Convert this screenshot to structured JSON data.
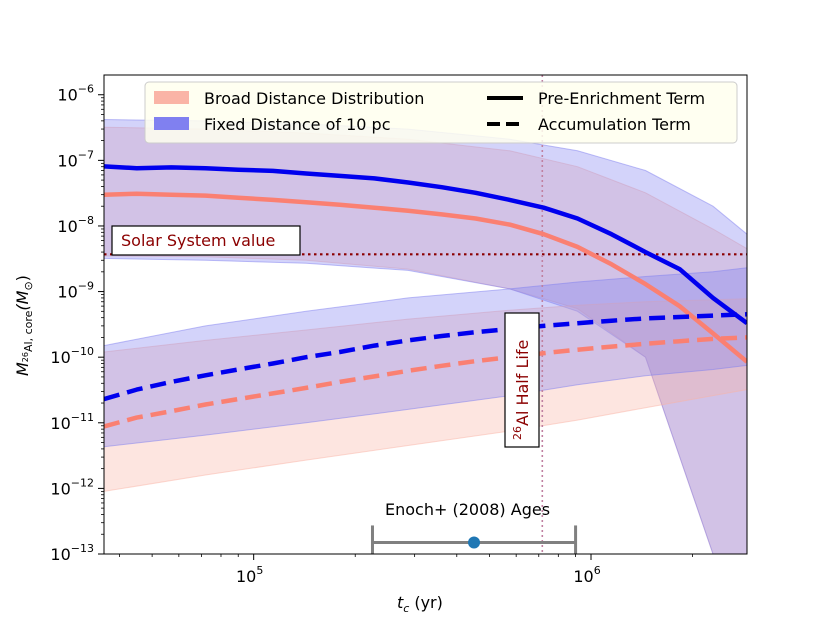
{
  "chart_data": {
    "type": "line",
    "xscale": "log",
    "yscale": "log",
    "xlim": [
      36000,
      2900000
    ],
    "ylim": [
      1e-13,
      2e-06
    ],
    "xlabel": "t_c (yr)",
    "ylabel": "M_26Al,core (M_sun)",
    "x_ticks": [
      {
        "value": 100000,
        "base": "10",
        "exp": "5"
      },
      {
        "value": 1000000,
        "base": "10",
        "exp": "6"
      }
    ],
    "y_ticks": [
      {
        "value": 1e-13,
        "base": "10",
        "exp": "−13"
      },
      {
        "value": 1e-12,
        "base": "10",
        "exp": "−12"
      },
      {
        "value": 1e-11,
        "base": "10",
        "exp": "−11"
      },
      {
        "value": 1e-10,
        "base": "10",
        "exp": "−10"
      },
      {
        "value": 1e-09,
        "base": "10",
        "exp": "−9"
      },
      {
        "value": 1e-08,
        "base": "10",
        "exp": "−8"
      },
      {
        "value": 1e-07,
        "base": "10",
        "exp": "−7"
      },
      {
        "value": 1e-06,
        "base": "10",
        "exp": "−6"
      }
    ],
    "colors": {
      "broad": "#fa8072",
      "broad_band": "#fab4a6",
      "fixed": "#0000ee",
      "fixed_band": "#8080f0",
      "solar": "#8b0000",
      "halflife": "#c080a0",
      "enoch": "#808080",
      "enoch_point": "#1f77b4"
    },
    "series": [
      {
        "name": "Fixed Distance of 10 pc - Pre-Enrichment Term",
        "color": "#0000ee",
        "style": "solid",
        "x": [
          36000,
          45000,
          57000,
          72000,
          90000,
          114000,
          143000,
          180000,
          228000,
          287000,
          361000,
          455000,
          574000,
          724000,
          912000,
          1150000,
          1450000,
          1830000,
          2300000,
          2900000
        ],
        "y": [
          8.1e-08,
          7.6e-08,
          7.8e-08,
          7.6e-08,
          7.2e-08,
          6.9e-08,
          6.3e-08,
          5.8e-08,
          5.3e-08,
          4.6e-08,
          3.9e-08,
          3.2e-08,
          2.5e-08,
          1.9e-08,
          1.3e-08,
          7.5e-09,
          4e-09,
          2.2e-09,
          8e-10,
          3.3e-10
        ]
      },
      {
        "name": "Broad Distance Distribution - Pre-Enrichment Term",
        "color": "#fa8072",
        "style": "solid",
        "x": [
          36000,
          45000,
          57000,
          72000,
          90000,
          114000,
          143000,
          180000,
          228000,
          287000,
          361000,
          455000,
          574000,
          724000,
          912000,
          1150000,
          1450000,
          1830000,
          2300000,
          2900000
        ],
        "y": [
          3e-08,
          3.1e-08,
          3e-08,
          2.9e-08,
          2.7e-08,
          2.5e-08,
          2.3e-08,
          2.1e-08,
          1.9e-08,
          1.7e-08,
          1.5e-08,
          1.3e-08,
          1.05e-08,
          7.5e-09,
          4.8e-09,
          2.6e-09,
          1.3e-09,
          6e-10,
          2.3e-10,
          8.5e-11
        ]
      },
      {
        "name": "Fixed Distance of 10 pc - Accumulation Term",
        "color": "#0000ee",
        "style": "dashed",
        "x": [
          36000,
          45000,
          57000,
          72000,
          90000,
          114000,
          143000,
          180000,
          228000,
          287000,
          361000,
          455000,
          574000,
          724000,
          912000,
          1150000,
          1450000,
          1830000,
          2300000,
          2900000
        ],
        "y": [
          2.3e-11,
          3.2e-11,
          4.2e-11,
          5.3e-11,
          6.5e-11,
          8e-11,
          1e-10,
          1.2e-10,
          1.5e-10,
          1.8e-10,
          2.1e-10,
          2.4e-10,
          2.7e-10,
          3e-10,
          3.3e-10,
          3.6e-10,
          3.9e-10,
          4.1e-10,
          4.3e-10,
          4.5e-10
        ]
      },
      {
        "name": "Broad Distance Distribution - Accumulation Term",
        "color": "#fa8072",
        "style": "dashed",
        "x": [
          36000,
          45000,
          57000,
          72000,
          90000,
          114000,
          143000,
          180000,
          228000,
          287000,
          361000,
          455000,
          574000,
          724000,
          912000,
          1150000,
          1450000,
          1830000,
          2300000,
          2900000
        ],
        "y": [
          8.8e-12,
          1.2e-11,
          1.5e-11,
          1.9e-11,
          2.3e-11,
          2.8e-11,
          3.4e-11,
          4.2e-11,
          5.1e-11,
          6.2e-11,
          7.4e-11,
          8.7e-11,
          1e-10,
          1.15e-10,
          1.3e-10,
          1.45e-10,
          1.6e-10,
          1.75e-10,
          1.9e-10,
          2e-10
        ]
      }
    ],
    "bands": [
      {
        "name": "Broad Distance Distribution - Pre-Enrichment band",
        "color": "#fab4a6",
        "x": [
          36000,
          72000,
          143000,
          287000,
          574000,
          912000,
          1450000,
          2300000,
          2900000
        ],
        "upper": [
          3.2e-07,
          3e-07,
          2.6e-07,
          2.1e-07,
          1.4e-07,
          8e-08,
          3.2e-08,
          9e-09,
          4.5e-09
        ],
        "lower": [
          3.5e-09,
          3.4e-09,
          3e-09,
          2.2e-09,
          1.1e-09,
          5.5e-10,
          1e-10,
          1e-13,
          1e-13
        ]
      },
      {
        "name": "Fixed Distance of 10 pc - Pre-Enrichment band",
        "color": "#8080f0",
        "x": [
          36000,
          72000,
          143000,
          287000,
          574000,
          912000,
          1450000,
          2300000,
          2900000
        ],
        "upper": [
          4.2e-07,
          4e-07,
          3.6e-07,
          3e-07,
          2.1e-07,
          1.4e-07,
          7e-08,
          2e-08,
          7.5e-09
        ],
        "lower": [
          3.2e-09,
          3e-09,
          2.7e-09,
          2.1e-09,
          1.1e-09,
          5e-10,
          1e-10,
          1e-13,
          1e-13
        ]
      },
      {
        "name": "Broad Distance Distribution - Accumulation band",
        "color": "#fab4a6",
        "x": [
          36000,
          72000,
          143000,
          287000,
          574000,
          912000,
          1450000,
          2300000,
          2900000
        ],
        "upper": [
          1.2e-10,
          1.8e-10,
          2.6e-10,
          3.8e-10,
          5.2e-10,
          6.2e-10,
          7e-10,
          7.5e-10,
          7.8e-10
        ],
        "lower": [
          9e-13,
          1.6e-12,
          2.7e-12,
          4.5e-12,
          7.5e-12,
          1.1e-11,
          1.7e-11,
          2.6e-11,
          3.2e-11
        ]
      },
      {
        "name": "Fixed Distance of 10 pc - Accumulation band",
        "color": "#8080f0",
        "x": [
          36000,
          72000,
          143000,
          287000,
          574000,
          912000,
          1450000,
          2300000,
          2900000
        ],
        "upper": [
          1.5e-10,
          3e-10,
          5e-10,
          8e-10,
          1.1e-09,
          1.4e-09,
          1.7e-09,
          2e-09,
          2.3e-09
        ],
        "lower": [
          4.3e-12,
          6.5e-12,
          1e-11,
          1.6e-11,
          2.6e-11,
          3.8e-11,
          5.2e-11,
          6.5e-11,
          7.5e-11
        ]
      }
    ],
    "hlines": [
      {
        "name": "Solar System value",
        "y": 3.7e-09,
        "color": "#8b0000",
        "style": "dotted"
      }
    ],
    "vlines": [
      {
        "name": "26Al Half Life",
        "x": 717000,
        "color": "#c080a0",
        "style": "dotted"
      }
    ],
    "errorbar": {
      "name": "Enoch+ (2008) Ages",
      "x": 450000,
      "x_low": 225000,
      "x_high": 900000,
      "y": 1.5e-13,
      "color": "#808080",
      "point_color": "#1f77b4"
    },
    "annotations": {
      "solar_label": "Solar System value",
      "halflife_label_sup": "26",
      "halflife_label_text": "Al Half Life",
      "enoch_label": "Enoch+ (2008) Ages"
    },
    "legend": {
      "placement": "top",
      "entries": [
        {
          "label": "Broad Distance Distribution",
          "kind": "patch",
          "color": "#fab4a6"
        },
        {
          "label": "Fixed Distance of 10 pc",
          "kind": "patch",
          "color": "#8080f0"
        },
        {
          "label": "Pre-Enrichment Term",
          "kind": "line",
          "style": "solid"
        },
        {
          "label": "Accumulation Term",
          "kind": "line",
          "style": "dashed"
        }
      ]
    },
    "axis_labels": {
      "x_var": "t",
      "x_sub": "c",
      "x_unit": "(yr)",
      "y_var": "M",
      "y_sub_sup": "26",
      "y_sub_text": "Al, core",
      "y_unit_open": "(M",
      "y_unit_sun": "⊙",
      "y_unit_close": ")"
    }
  }
}
